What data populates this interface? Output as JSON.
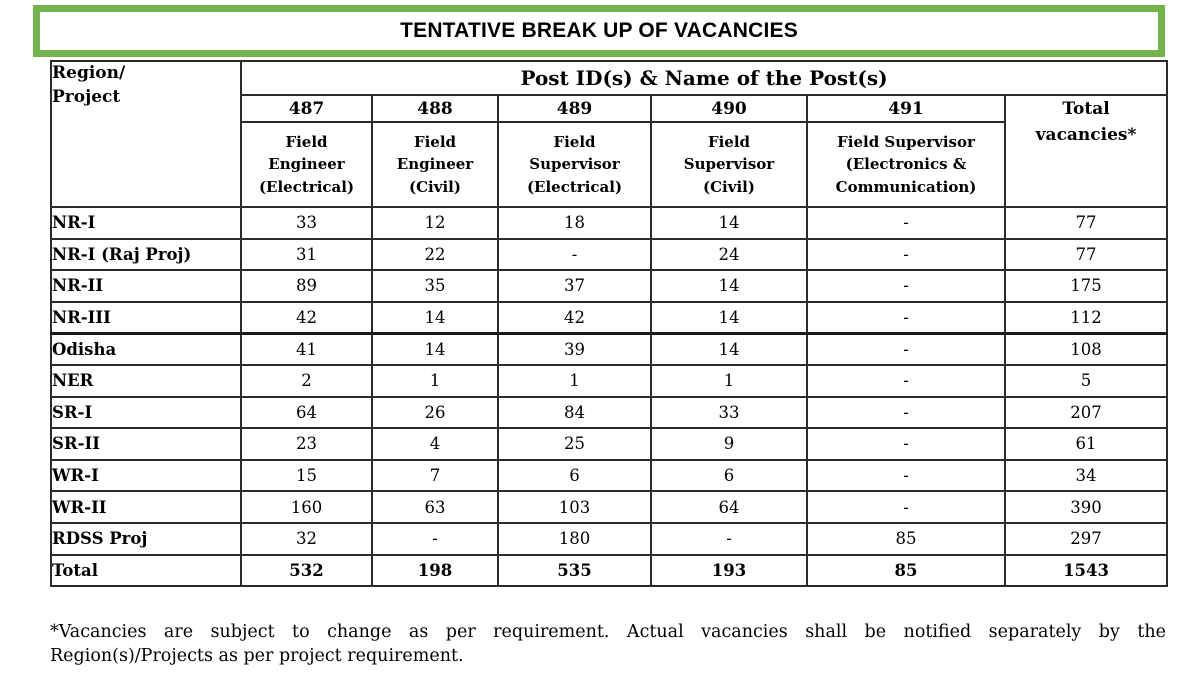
{
  "title": "TENTATIVE BREAK UP OF VACANCIES",
  "colors": {
    "accent_green": "#74b44e",
    "border_dark": "#2a2a2a",
    "background": "#ffffff",
    "text": "#000000"
  },
  "table": {
    "region_header": "Region/\nProject",
    "post_header": "Post ID(s) & Name of the Post(s)",
    "total_header": "Total\nvacancies*",
    "post_ids": [
      "487",
      "488",
      "489",
      "490",
      "491"
    ],
    "post_names": [
      "Field\nEngineer\n(Electrical)",
      "Field\nEngineer\n(Civil)",
      "Field\nSupervisor\n(Electrical)",
      "Field\nSupervisor\n(Civil)",
      "Field Supervisor\n(Electronics &\nCommunication)"
    ],
    "rows": [
      {
        "label": "NR-I",
        "values": [
          "33",
          "12",
          "18",
          "14",
          "-",
          "77"
        ],
        "bold": false,
        "thick_top": false
      },
      {
        "label": "NR-I (Raj Proj)",
        "values": [
          "31",
          "22",
          "-",
          "24",
          "-",
          "77"
        ],
        "bold": false,
        "thick_top": false
      },
      {
        "label": "NR-II",
        "values": [
          "89",
          "35",
          "37",
          "14",
          "-",
          "175"
        ],
        "bold": false,
        "thick_top": false
      },
      {
        "label": "NR-III",
        "values": [
          "42",
          "14",
          "42",
          "14",
          "-",
          "112"
        ],
        "bold": false,
        "thick_top": false
      },
      {
        "label": "Odisha",
        "values": [
          "41",
          "14",
          "39",
          "14",
          "-",
          "108"
        ],
        "bold": false,
        "thick_top": true
      },
      {
        "label": "NER",
        "values": [
          "2",
          "1",
          "1",
          "1",
          "-",
          "5"
        ],
        "bold": false,
        "thick_top": false
      },
      {
        "label": "SR-I",
        "values": [
          "64",
          "26",
          "84",
          "33",
          "-",
          "207"
        ],
        "bold": false,
        "thick_top": false
      },
      {
        "label": "SR-II",
        "values": [
          "23",
          "4",
          "25",
          "9",
          "-",
          "61"
        ],
        "bold": false,
        "thick_top": false
      },
      {
        "label": "WR-I",
        "values": [
          "15",
          "7",
          "6",
          "6",
          "-",
          "34"
        ],
        "bold": false,
        "thick_top": false
      },
      {
        "label": "WR-II",
        "values": [
          "160",
          "63",
          "103",
          "64",
          "-",
          "390"
        ],
        "bold": false,
        "thick_top": false
      },
      {
        "label": "RDSS Proj",
        "values": [
          "32",
          "-",
          "180",
          "-",
          "85",
          "297"
        ],
        "bold": false,
        "thick_top": false
      },
      {
        "label": "Total",
        "values": [
          "532",
          "198",
          "535",
          "193",
          "85",
          "1543"
        ],
        "bold": true,
        "thick_top": false
      }
    ]
  },
  "footnote": {
    "line1": "*Vacancies are subject to change as per requirement. Actual vacancies shall be notified separately by the",
    "line2": "Region(s)/Projects as per project requirement."
  }
}
